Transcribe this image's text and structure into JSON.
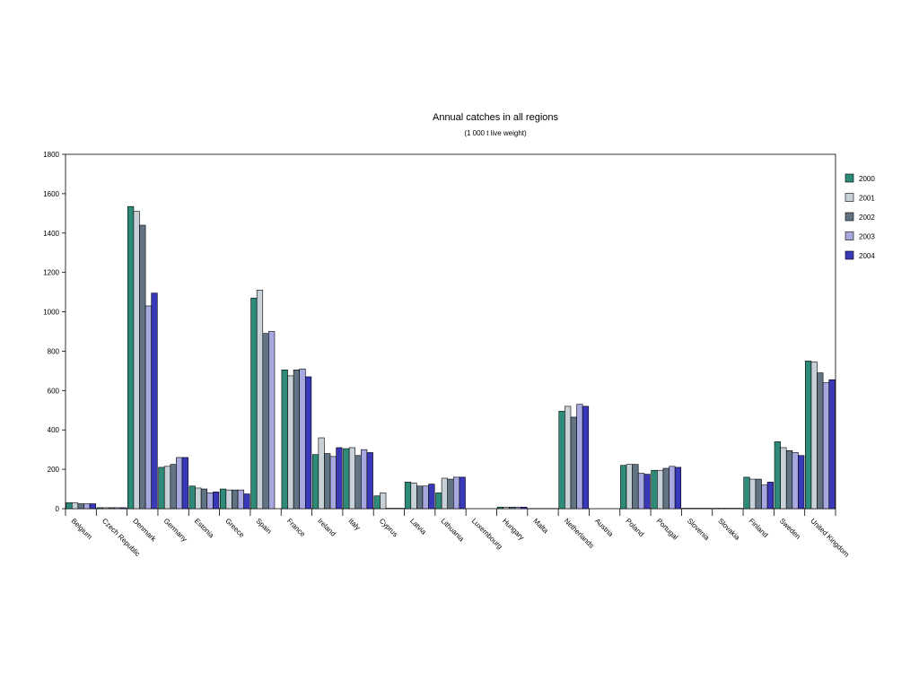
{
  "chart_data": {
    "type": "bar",
    "title": "Annual catches in all regions",
    "subtitle": "(1 000 t live weight)",
    "xlabel": "",
    "ylabel": "",
    "ylim": [
      0,
      1800
    ],
    "yticks": [
      0,
      200,
      400,
      600,
      800,
      1000,
      1200,
      1400,
      1600,
      1800
    ],
    "legend_position": "right",
    "grid": false,
    "categories": [
      "Belgium",
      "Czech Republic",
      "Denmark",
      "Germany",
      "Estonia",
      "Greece",
      "Spain",
      "France",
      "Ireland",
      "Italy",
      "Cyprus",
      "Latvia",
      "Lithuania",
      "Luxembourg",
      "Hungary",
      "Malta",
      "Netherlands",
      "Austria",
      "Poland",
      "Portugal",
      "Slovenia",
      "Slovakia",
      "Finland",
      "Sweden",
      "United Kingdom"
    ],
    "series": [
      {
        "name": "2000",
        "color": "#2E8B7A",
        "values": [
          30,
          5,
          1535,
          210,
          115,
          100,
          1070,
          705,
          275,
          305,
          65,
          135,
          80,
          0,
          8,
          1,
          495,
          0,
          220,
          195,
          2,
          2,
          160,
          340,
          750
        ]
      },
      {
        "name": "2001",
        "color": "#C8D0D8",
        "values": [
          30,
          5,
          1510,
          215,
          105,
          95,
          1110,
          675,
          360,
          310,
          80,
          130,
          155,
          0,
          8,
          1,
          520,
          0,
          225,
          195,
          2,
          2,
          150,
          310,
          745
        ]
      },
      {
        "name": "2002",
        "color": "#627484",
        "values": [
          25,
          5,
          1440,
          225,
          100,
          95,
          890,
          705,
          280,
          270,
          2,
          115,
          150,
          0,
          8,
          1,
          465,
          0,
          225,
          205,
          2,
          2,
          150,
          295,
          690
        ]
      },
      {
        "name": "2003",
        "color": "#A8A8E0",
        "values": [
          25,
          5,
          1030,
          260,
          80,
          95,
          900,
          710,
          265,
          300,
          2,
          115,
          160,
          0,
          8,
          1,
          530,
          0,
          180,
          215,
          2,
          2,
          120,
          285,
          640
        ]
      },
      {
        "name": "2004",
        "color": "#3838B8",
        "values": [
          25,
          5,
          1095,
          260,
          85,
          75,
          0,
          670,
          310,
          285,
          2,
          125,
          160,
          0,
          8,
          1,
          520,
          0,
          175,
          210,
          2,
          2,
          135,
          270,
          655
        ]
      }
    ]
  }
}
